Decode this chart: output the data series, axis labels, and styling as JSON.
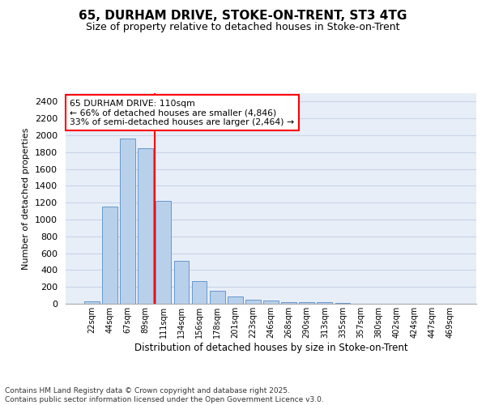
{
  "title_line1": "65, DURHAM DRIVE, STOKE-ON-TRENT, ST3 4TG",
  "title_line2": "Size of property relative to detached houses in Stoke-on-Trent",
  "xlabel": "Distribution of detached houses by size in Stoke-on-Trent",
  "ylabel": "Number of detached properties",
  "categories": [
    "22sqm",
    "44sqm",
    "67sqm",
    "89sqm",
    "111sqm",
    "134sqm",
    "156sqm",
    "178sqm",
    "201sqm",
    "223sqm",
    "246sqm",
    "268sqm",
    "290sqm",
    "313sqm",
    "335sqm",
    "357sqm",
    "380sqm",
    "402sqm",
    "424sqm",
    "447sqm",
    "469sqm"
  ],
  "values": [
    25,
    1155,
    1960,
    1850,
    1225,
    510,
    270,
    155,
    88,
    48,
    38,
    18,
    18,
    15,
    5,
    2,
    1,
    1,
    0,
    0,
    0
  ],
  "bar_color": "#b8d0ea",
  "bar_edge_color": "#6699cc",
  "grid_color": "#c8d4e8",
  "background_color": "#e8eef8",
  "vline_index": 3,
  "vline_color": "red",
  "annotation_line1": "65 DURHAM DRIVE: 110sqm",
  "annotation_line2": "← 66% of detached houses are smaller (4,846)",
  "annotation_line3": "33% of semi-detached houses are larger (2,464) →",
  "footer_line1": "Contains HM Land Registry data © Crown copyright and database right 2025.",
  "footer_line2": "Contains public sector information licensed under the Open Government Licence v3.0.",
  "ylim": [
    0,
    2500
  ],
  "yticks": [
    0,
    200,
    400,
    600,
    800,
    1000,
    1200,
    1400,
    1600,
    1800,
    2000,
    2200,
    2400
  ],
  "figsize": [
    6.0,
    5.0
  ],
  "dpi": 100
}
